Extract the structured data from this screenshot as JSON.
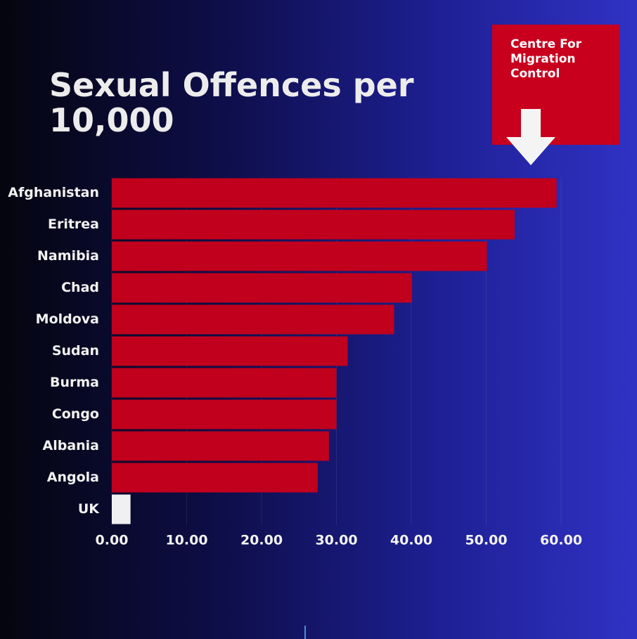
{
  "chart_data": {
    "type": "hbar",
    "title": "Sexual Offences per 10,000",
    "annotation": "Centre For Migration Control",
    "categories": [
      "Afghanistan",
      "Eritrea",
      "Namibia",
      "Chad",
      "Moldova",
      "Sudan",
      "Burma",
      "Congo",
      "Albania",
      "Angola",
      "UK"
    ],
    "values": [
      59.4,
      53.8,
      50.1,
      40.1,
      37.7,
      31.5,
      30.0,
      30.0,
      29.0,
      27.5,
      2.5
    ],
    "colors": [
      "#c0001c",
      "#c0001c",
      "#c0001c",
      "#c0001c",
      "#c0001c",
      "#c0001c",
      "#c0001c",
      "#c0001c",
      "#c0001c",
      "#c0001c",
      "#f0f0f0"
    ],
    "xlim": [
      0,
      60
    ],
    "xticks": [
      {
        "value": 0,
        "label": "0.00"
      },
      {
        "value": 10,
        "label": "10.00"
      },
      {
        "value": 20,
        "label": "20.00"
      },
      {
        "value": 30,
        "label": "30.00"
      },
      {
        "value": 40,
        "label": "40.00"
      },
      {
        "value": 50,
        "label": "50.00"
      },
      {
        "value": 60,
        "label": "60.00"
      }
    ],
    "grid": true
  }
}
